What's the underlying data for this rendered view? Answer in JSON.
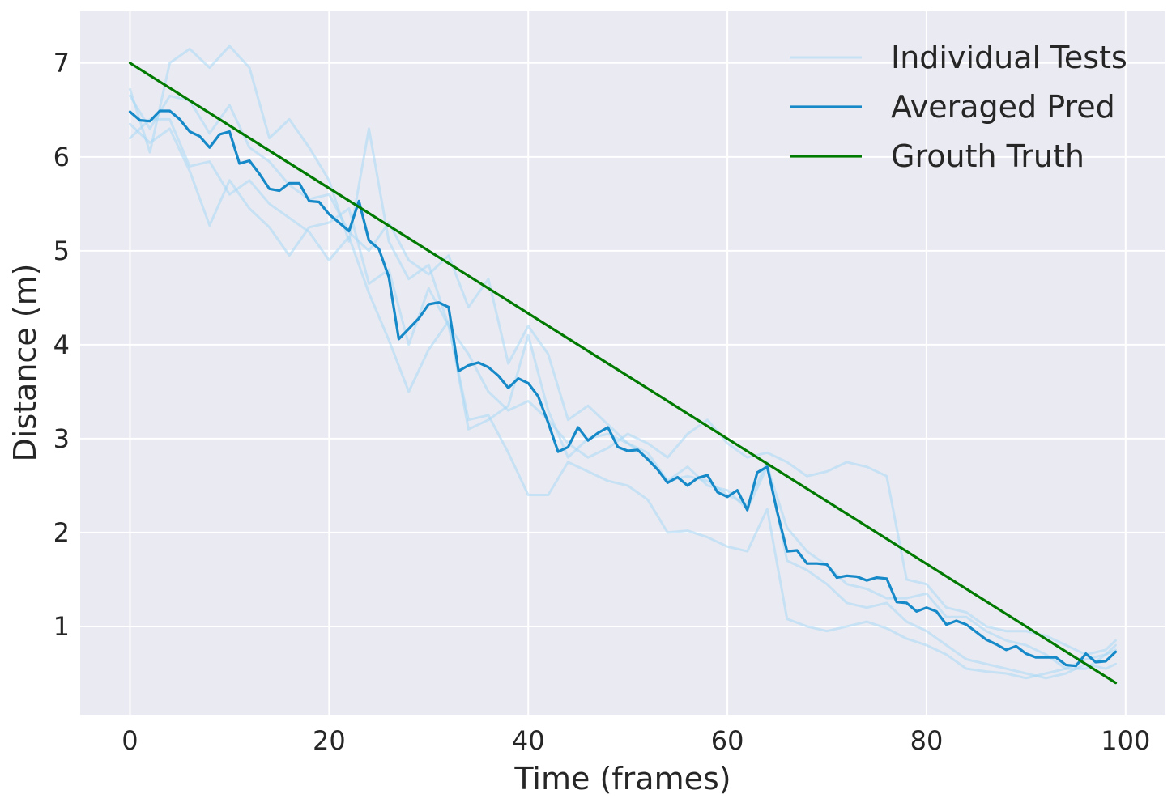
{
  "chart_data": {
    "type": "line",
    "xlabel": "Time (frames)",
    "ylabel": "Distance (m)",
    "xlim": [
      -5,
      104
    ],
    "ylim": [
      0.06,
      7.55
    ],
    "xticks": [
      0,
      20,
      40,
      60,
      80,
      100
    ],
    "yticks": [
      1,
      2,
      3,
      4,
      5,
      6,
      7
    ],
    "grid": true,
    "legend_position": "top-right",
    "colors": {
      "background": "#eaeaf2",
      "grid": "#ffffff",
      "individual": "#a8d8f5",
      "averaged": "#1689c8",
      "truth": "#007a00"
    },
    "legend": [
      {
        "label": "Individual Tests",
        "series": "individual"
      },
      {
        "label": "Averaged Pred",
        "series": "averaged"
      },
      {
        "label": "Grouth Truth",
        "series": "truth"
      }
    ],
    "series": [
      {
        "name": "Grouth Truth",
        "role": "truth",
        "x": [
          0,
          99
        ],
        "y": [
          7.0,
          0.4
        ]
      },
      {
        "name": "Averaged Pred",
        "role": "averaged",
        "x": [
          0,
          1,
          2,
          3,
          4,
          5,
          6,
          7,
          8,
          9,
          10,
          11,
          12,
          13,
          14,
          15,
          16,
          17,
          18,
          19,
          20,
          21,
          22,
          23,
          24,
          25,
          26,
          27,
          28,
          29,
          30,
          31,
          32,
          33,
          34,
          35,
          36,
          37,
          38,
          39,
          40,
          41,
          42,
          43,
          44,
          45,
          46,
          47,
          48,
          49,
          50,
          51,
          52,
          53,
          54,
          55,
          56,
          57,
          58,
          59,
          60,
          61,
          62,
          63,
          64,
          65,
          66,
          67,
          68,
          69,
          70,
          71,
          72,
          73,
          74,
          75,
          76,
          77,
          78,
          79,
          80,
          81,
          82,
          83,
          84,
          85,
          86,
          87,
          88,
          89,
          90,
          91,
          92,
          93,
          94,
          95,
          96,
          97,
          98,
          99
        ],
        "y": [
          6.48,
          6.39,
          6.38,
          6.49,
          6.49,
          6.4,
          6.27,
          6.22,
          6.1,
          6.24,
          6.27,
          5.93,
          5.96,
          5.82,
          5.66,
          5.64,
          5.72,
          5.72,
          5.53,
          5.52,
          5.39,
          5.3,
          5.21,
          5.53,
          5.11,
          5.02,
          4.72,
          4.06,
          4.17,
          4.28,
          4.43,
          4.45,
          4.4,
          3.72,
          3.78,
          3.81,
          3.76,
          3.67,
          3.54,
          3.64,
          3.59,
          3.45,
          3.17,
          2.86,
          2.91,
          3.12,
          2.98,
          3.06,
          3.12,
          2.91,
          2.87,
          2.88,
          2.78,
          2.67,
          2.53,
          2.59,
          2.5,
          2.58,
          2.61,
          2.43,
          2.38,
          2.45,
          2.24,
          2.64,
          2.7,
          2.22,
          1.8,
          1.81,
          1.67,
          1.67,
          1.66,
          1.52,
          1.54,
          1.53,
          1.49,
          1.52,
          1.51,
          1.26,
          1.25,
          1.16,
          1.2,
          1.16,
          1.02,
          1.06,
          1.02,
          0.94,
          0.86,
          0.81,
          0.75,
          0.79,
          0.71,
          0.67,
          0.67,
          0.67,
          0.59,
          0.58,
          0.71,
          0.62,
          0.63,
          0.73
        ]
      },
      {
        "name": "Individual Tests",
        "role": "individual",
        "x": [
          0,
          2,
          4,
          6,
          8,
          10,
          12,
          14,
          16,
          18,
          20,
          22,
          24,
          26,
          28,
          30,
          32,
          34,
          36,
          38,
          40,
          42,
          44,
          46,
          48,
          50,
          52,
          54,
          56,
          58,
          60,
          62,
          64,
          66,
          68,
          70,
          72,
          74,
          76,
          78,
          80,
          82,
          84,
          86,
          88,
          90,
          92,
          94,
          96,
          98,
          99
        ],
        "y": [
          6.72,
          6.05,
          7.0,
          7.15,
          6.95,
          7.18,
          6.95,
          6.2,
          6.4,
          6.1,
          5.75,
          5.1,
          6.3,
          5.1,
          4.7,
          4.85,
          4.2,
          3.9,
          3.5,
          3.3,
          3.4,
          3.2,
          2.95,
          2.8,
          2.9,
          3.05,
          2.95,
          2.8,
          3.05,
          3.2,
          2.95,
          2.8,
          2.85,
          2.75,
          2.6,
          2.65,
          2.75,
          2.7,
          2.6,
          1.5,
          1.45,
          1.2,
          1.15,
          1.0,
          0.95,
          0.95,
          0.9,
          0.8,
          0.7,
          0.75,
          0.85
        ]
      },
      {
        "name": "Individual Tests",
        "role": "individual",
        "x": [
          0,
          2,
          4,
          6,
          8,
          10,
          12,
          14,
          16,
          18,
          20,
          22,
          24,
          26,
          28,
          30,
          32,
          34,
          36,
          38,
          40,
          42,
          44,
          46,
          48,
          50,
          52,
          54,
          56,
          58,
          60,
          62,
          64,
          66,
          68,
          70,
          72,
          74,
          76,
          78,
          80,
          82,
          84,
          86,
          88,
          90,
          92,
          94,
          96,
          98,
          99
        ],
        "y": [
          6.2,
          6.4,
          6.4,
          5.9,
          5.95,
          5.6,
          5.75,
          5.5,
          5.35,
          5.2,
          4.9,
          5.15,
          4.55,
          4.05,
          3.5,
          3.95,
          4.25,
          3.1,
          3.2,
          3.35,
          4.1,
          3.3,
          2.8,
          3.0,
          3.05,
          2.95,
          2.8,
          2.55,
          2.6,
          2.55,
          2.4,
          2.3,
          2.75,
          1.7,
          1.6,
          1.45,
          1.25,
          1.2,
          1.25,
          1.05,
          0.95,
          0.8,
          0.65,
          0.6,
          0.55,
          0.5,
          0.45,
          0.5,
          0.6,
          0.55,
          0.6
        ]
      },
      {
        "name": "Individual Tests",
        "role": "individual",
        "x": [
          0,
          2,
          4,
          6,
          8,
          10,
          12,
          14,
          16,
          18,
          20,
          22,
          24,
          26,
          28,
          30,
          32,
          34,
          36,
          38,
          40,
          42,
          44,
          46,
          48,
          50,
          52,
          54,
          56,
          58,
          60,
          62,
          64,
          66,
          68,
          70,
          72,
          74,
          76,
          78,
          80,
          82,
          84,
          86,
          88,
          90,
          92,
          94,
          96,
          98,
          99
        ],
        "y": [
          6.35,
          6.15,
          6.3,
          5.85,
          5.27,
          5.75,
          5.45,
          5.25,
          4.95,
          5.25,
          5.3,
          5.45,
          4.65,
          4.8,
          4.0,
          4.6,
          4.2,
          3.2,
          3.25,
          2.85,
          2.4,
          2.4,
          2.75,
          2.65,
          2.55,
          2.5,
          2.35,
          2.0,
          2.02,
          1.95,
          1.85,
          1.8,
          2.25,
          1.08,
          1.0,
          0.95,
          1.0,
          1.05,
          0.98,
          0.87,
          0.8,
          0.7,
          0.55,
          0.52,
          0.5,
          0.45,
          0.5,
          0.55,
          0.55,
          0.7,
          0.75
        ]
      },
      {
        "name": "Individual Tests",
        "role": "individual",
        "x": [
          0,
          2,
          4,
          6,
          8,
          10,
          12,
          14,
          16,
          18,
          20,
          22,
          24,
          26,
          28,
          30,
          32,
          34,
          36,
          38,
          40,
          42,
          44,
          46,
          48,
          50,
          52,
          54,
          56,
          58,
          60,
          62,
          64,
          66,
          68,
          70,
          72,
          74,
          76,
          78,
          80,
          82,
          84,
          86,
          88,
          90,
          92,
          94,
          96,
          98,
          99
        ],
        "y": [
          6.65,
          6.3,
          6.65,
          6.6,
          6.25,
          6.55,
          6.1,
          5.95,
          5.7,
          5.55,
          5.6,
          5.2,
          5.0,
          5.3,
          4.9,
          4.75,
          4.95,
          4.4,
          4.7,
          3.8,
          4.2,
          3.9,
          3.2,
          3.35,
          3.15,
          2.95,
          2.85,
          2.55,
          2.7,
          2.5,
          2.45,
          2.25,
          2.7,
          2.05,
          1.8,
          1.65,
          1.45,
          1.4,
          1.3,
          1.3,
          1.35,
          1.1,
          1.1,
          0.95,
          0.85,
          0.8,
          0.7,
          0.55,
          0.65,
          0.7,
          0.8
        ]
      }
    ]
  }
}
